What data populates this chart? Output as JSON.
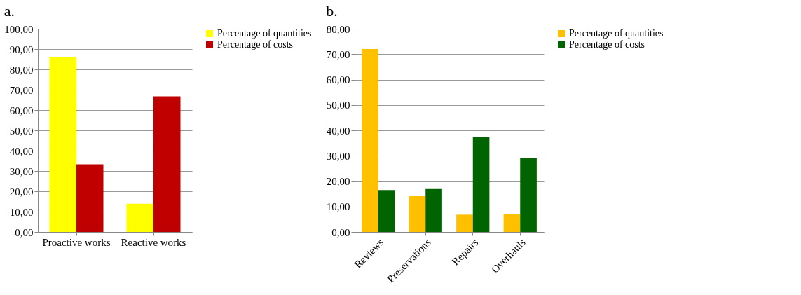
{
  "chart_data": [
    {
      "type": "bar",
      "title": "a.",
      "categories": [
        "Proactive works",
        "Reactive works"
      ],
      "series": [
        {
          "name": "Percentage of quantities",
          "color": "#ffff00",
          "values": [
            86.1,
            13.9
          ]
        },
        {
          "name": "Percentage of costs",
          "color": "#c00000",
          "values": [
            33.3,
            66.7
          ]
        }
      ],
      "ylim": [
        0,
        100
      ],
      "yticks": [
        {
          "value": 0,
          "label": "0,00"
        },
        {
          "value": 10,
          "label": "10,00"
        },
        {
          "value": 20,
          "label": "20,00"
        },
        {
          "value": 30,
          "label": "30,00"
        },
        {
          "value": 40,
          "label": "40,00"
        },
        {
          "value": 50,
          "label": "50,00"
        },
        {
          "value": 60,
          "label": "60,00"
        },
        {
          "value": 70,
          "label": "70,00"
        },
        {
          "value": 80,
          "label": "80,00"
        },
        {
          "value": 90,
          "label": "90,00"
        },
        {
          "value": 100,
          "label": "100,00"
        }
      ],
      "grid": "y",
      "legend": "right"
    },
    {
      "type": "bar",
      "title": "b.",
      "categories": [
        "Reviews",
        "Preservations",
        "Repairs",
        "Overhauls"
      ],
      "series": [
        {
          "name": "Percentage of quantities",
          "color": "#ffc000",
          "values": [
            72.0,
            14.1,
            6.8,
            7.0
          ]
        },
        {
          "name": "Percentage of costs",
          "color": "#006400",
          "values": [
            16.5,
            16.9,
            37.3,
            29.2
          ]
        }
      ],
      "ylim": [
        0,
        80
      ],
      "yticks": [
        {
          "value": 0,
          "label": "0,00"
        },
        {
          "value": 10,
          "label": "10,00"
        },
        {
          "value": 20,
          "label": "20,00"
        },
        {
          "value": 30,
          "label": "30,00"
        },
        {
          "value": 40,
          "label": "40,00"
        },
        {
          "value": 50,
          "label": "50,00"
        },
        {
          "value": 60,
          "label": "60,00"
        },
        {
          "value": 70,
          "label": "70,00"
        },
        {
          "value": 80,
          "label": "80,00"
        }
      ],
      "grid": "y",
      "legend": "right"
    }
  ]
}
